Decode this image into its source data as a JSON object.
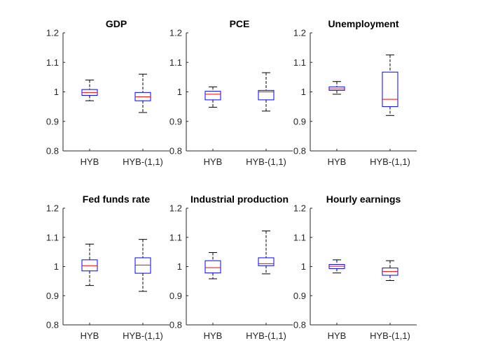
{
  "colors": {
    "box": "#0000ff",
    "median": "#ff0000",
    "whisker": "#000000",
    "axis": "#262626"
  },
  "chart_data": [
    {
      "type": "boxplot",
      "title": "GDP",
      "categories": [
        "HYB",
        "HYB-(1,1)"
      ],
      "ylim": [
        0.8,
        1.2
      ],
      "yticks": [
        "0.8",
        "0.9",
        "1",
        "1.1",
        "1.2"
      ],
      "boxes": [
        {
          "min": 0.97,
          "q1": 0.988,
          "median": 0.998,
          "q3": 1.008,
          "max": 1.04
        },
        {
          "min": 0.93,
          "q1": 0.97,
          "median": 0.983,
          "q3": 0.998,
          "max": 1.06
        }
      ]
    },
    {
      "type": "boxplot",
      "title": "PCE",
      "categories": [
        "HYB",
        "HYB-(1,1)"
      ],
      "ylim": [
        0.8,
        1.2
      ],
      "yticks": [
        "0.8",
        "0.9",
        "1",
        "1.1",
        "1.2"
      ],
      "boxes": [
        {
          "min": 0.948,
          "q1": 0.973,
          "median": 0.992,
          "q3": 1.002,
          "max": 1.017
        },
        {
          "min": 0.935,
          "q1": 0.973,
          "median": 1.0,
          "q3": 1.005,
          "max": 1.065
        }
      ]
    },
    {
      "type": "boxplot",
      "title": "Unemployment",
      "categories": [
        "HYB",
        "HYB-(1,1)"
      ],
      "ylim": [
        0.8,
        1.2
      ],
      "yticks": [
        "0.8",
        "0.9",
        "1",
        "1.1",
        "1.2"
      ],
      "boxes": [
        {
          "min": 0.992,
          "q1": 1.005,
          "median": 1.01,
          "q3": 1.017,
          "max": 1.035
        },
        {
          "min": 0.92,
          "q1": 0.95,
          "median": 0.975,
          "q3": 1.067,
          "max": 1.125
        }
      ]
    },
    {
      "type": "boxplot",
      "title": "Fed funds rate",
      "categories": [
        "HYB",
        "HYB-(1,1)"
      ],
      "ylim": [
        0.8,
        1.2
      ],
      "yticks": [
        "0.8",
        "0.9",
        "1",
        "1.1",
        "1.2"
      ],
      "boxes": [
        {
          "min": 0.935,
          "q1": 0.985,
          "median": 1.003,
          "q3": 1.023,
          "max": 1.077
        },
        {
          "min": 0.915,
          "q1": 0.977,
          "median": 1.005,
          "q3": 1.03,
          "max": 1.093
        }
      ]
    },
    {
      "type": "boxplot",
      "title": "Industrial production",
      "categories": [
        "HYB",
        "HYB-(1,1)"
      ],
      "ylim": [
        0.8,
        1.2
      ],
      "yticks": [
        "0.8",
        "0.9",
        "1",
        "1.1",
        "1.2"
      ],
      "boxes": [
        {
          "min": 0.958,
          "q1": 0.978,
          "median": 0.996,
          "q3": 1.02,
          "max": 1.048
        },
        {
          "min": 0.975,
          "q1": 1.003,
          "median": 1.01,
          "q3": 1.03,
          "max": 1.122
        }
      ]
    },
    {
      "type": "boxplot",
      "title": "Hourly earnings",
      "categories": [
        "HYB",
        "HYB-(1,1)"
      ],
      "ylim": [
        0.8,
        1.2
      ],
      "yticks": [
        "0.8",
        "0.9",
        "1",
        "1.1",
        "1.2"
      ],
      "boxes": [
        {
          "min": 0.978,
          "q1": 0.993,
          "median": 1.001,
          "q3": 1.007,
          "max": 1.023
        },
        {
          "min": 0.952,
          "q1": 0.97,
          "median": 0.983,
          "q3": 0.995,
          "max": 1.02
        }
      ]
    }
  ]
}
